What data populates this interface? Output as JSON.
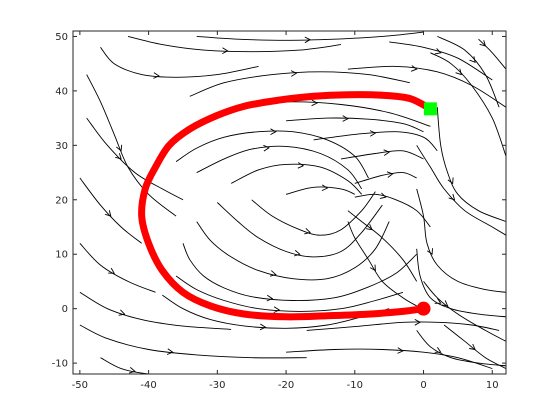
{
  "chart_data": {
    "type": "streamplot",
    "title": "",
    "xlabel": "",
    "ylabel": "",
    "xlim": [
      -51,
      12
    ],
    "ylim": [
      -12,
      51
    ],
    "xticks": [
      -50,
      -40,
      -30,
      -20,
      -10,
      0,
      10
    ],
    "yticks": [
      -10,
      0,
      10,
      20,
      30,
      40,
      50
    ],
    "grid": false,
    "legend": "none",
    "colors": {
      "streamlines": "#000000",
      "trajectory": "#ff0000",
      "start_marker": "#ff0000",
      "end_marker": "#00ff00"
    },
    "trajectory": {
      "x": [
        0,
        -3,
        -8,
        -14,
        -20,
        -26,
        -31,
        -35,
        -38,
        -40,
        -41,
        -40.5,
        -39,
        -37,
        -34,
        -30,
        -26,
        -21,
        -16,
        -11,
        -6,
        -2,
        1
      ],
      "y": [
        0,
        -0.5,
        -1,
        -1.3,
        -1.5,
        -1,
        0.5,
        3,
        7,
        12,
        17,
        22,
        26,
        30,
        33,
        35.5,
        37.2,
        38.3,
        39,
        39.3,
        39.2,
        38.6,
        36.7
      ]
    },
    "start_marker": {
      "shape": "circle",
      "x": 0,
      "y": 0
    },
    "end_marker": {
      "shape": "square",
      "x": 1,
      "y": 36.7
    },
    "streamlines": [
      {
        "x": [
          -47,
          -45,
          -41,
          -36,
          -30,
          -24
        ],
        "y": [
          48,
          45,
          43,
          42.5,
          43,
          44.5
        ]
      },
      {
        "x": [
          -43,
          -38,
          -32,
          -25,
          -18,
          -12
        ],
        "y": [
          50,
          48.5,
          47.5,
          47.2,
          47.5,
          48.5
        ]
      },
      {
        "x": [
          -33,
          -27,
          -20,
          -13,
          -6,
          0
        ],
        "y": [
          50,
          49.5,
          49.3,
          49.5,
          50,
          50.8
        ]
      },
      {
        "x": [
          -49,
          -47,
          -45,
          -43,
          -40,
          -36
        ],
        "y": [
          43,
          38,
          32,
          26,
          21,
          17
        ]
      },
      {
        "x": [
          -49,
          -46,
          -42,
          -38,
          -35
        ],
        "y": [
          35,
          30,
          25,
          22,
          20
        ]
      },
      {
        "x": [
          -50,
          -47,
          -44,
          -41
        ],
        "y": [
          24,
          19,
          15,
          12
        ]
      },
      {
        "x": [
          -50,
          -47,
          -43,
          -39
        ],
        "y": [
          12,
          8,
          5,
          3
        ]
      },
      {
        "x": [
          -50,
          -46,
          -41,
          -35,
          -28
        ],
        "y": [
          3,
          0,
          -2,
          -3.2,
          -3.8
        ]
      },
      {
        "x": [
          -50,
          -46,
          -40,
          -33,
          -25,
          -17
        ],
        "y": [
          -3,
          -5.5,
          -7.5,
          -8.5,
          -9,
          -9
        ]
      },
      {
        "x": [
          -47,
          -44,
          -40,
          -35,
          -29
        ],
        "y": [
          -9,
          -11,
          -12,
          -12.3,
          -12
        ]
      },
      {
        "x": [
          -20,
          -13,
          -6,
          0,
          5,
          10
        ],
        "y": [
          -8,
          -7.5,
          -7.5,
          -8,
          -9,
          -11
        ]
      },
      {
        "x": [
          -17,
          -10,
          -3,
          2,
          7,
          11
        ],
        "y": [
          -4,
          -3.3,
          -2.5,
          -2.5,
          -3,
          -4
        ]
      },
      {
        "x": [
          -38,
          -35,
          -31,
          -26,
          -20,
          -14,
          -9,
          -5
        ],
        "y": [
          2.5,
          0,
          -2,
          -3.2,
          -3.6,
          -3,
          -1.5,
          0
        ]
      },
      {
        "x": [
          -36,
          -33,
          -29,
          -24,
          -18,
          -12,
          -7,
          -3
        ],
        "y": [
          6,
          3.5,
          1.5,
          0,
          -0.5,
          0,
          1.5,
          3
        ]
      },
      {
        "x": [
          -35,
          -34,
          -32,
          -29,
          -25,
          -19,
          -13,
          -8,
          -4,
          -1
        ],
        "y": [
          12,
          9,
          6,
          3.8,
          2.2,
          1.5,
          2,
          4,
          6.5,
          10
        ]
      },
      {
        "x": [
          -33,
          -31,
          -28,
          -24,
          -19,
          -14,
          -10,
          -7,
          -5
        ],
        "y": [
          16,
          12.5,
          9.5,
          7,
          5.5,
          5.5,
          7.5,
          11,
          16
        ]
      },
      {
        "x": [
          -30,
          -27,
          -24,
          -20,
          -16,
          -12,
          -9,
          -6
        ],
        "y": [
          19.5,
          16,
          13,
          10.5,
          9.5,
          10.5,
          14,
          19
        ]
      },
      {
        "x": [
          -25,
          -22,
          -18,
          -15,
          -12,
          -9,
          -7
        ],
        "y": [
          20,
          17,
          14.5,
          13.5,
          14.5,
          18,
          21.5
        ]
      },
      {
        "x": [
          -36,
          -33,
          -29,
          -24,
          -19,
          -14,
          -10,
          -8
        ],
        "y": [
          27,
          29.5,
          31.5,
          32.5,
          32.5,
          31,
          28,
          24
        ]
      },
      {
        "x": [
          -33,
          -29,
          -25,
          -20,
          -15,
          -11,
          -9
        ],
        "y": [
          25,
          27.5,
          29.3,
          29.8,
          28.5,
          25.5,
          22
        ]
      },
      {
        "x": [
          -28,
          -24,
          -20,
          -15,
          -11,
          -9
        ],
        "y": [
          23,
          25.5,
          26.5,
          26,
          23.5,
          21
        ]
      },
      {
        "x": [
          -20,
          -16,
          -12,
          -10
        ],
        "y": [
          21,
          22.3,
          22,
          21
        ]
      },
      {
        "x": [
          -30,
          -25,
          -19,
          -12,
          -5,
          1
        ],
        "y": [
          36,
          37.5,
          38,
          37.5,
          36,
          33.5
        ]
      },
      {
        "x": [
          -34,
          -29,
          -22,
          -15,
          -8,
          -2
        ],
        "y": [
          39,
          41.5,
          43,
          43.5,
          43,
          41.5
        ]
      },
      {
        "x": [
          -20,
          -14,
          -8,
          -3,
          0
        ],
        "y": [
          34.5,
          35,
          34.8,
          34,
          32.5
        ]
      },
      {
        "x": [
          -16,
          -10,
          -4,
          0,
          2
        ],
        "y": [
          31,
          32,
          32.5,
          31.5,
          29
        ]
      },
      {
        "x": [
          -12,
          -7,
          -3,
          0
        ],
        "y": [
          27.5,
          28.5,
          29,
          27.5
        ]
      },
      {
        "x": [
          -10,
          -6,
          -3,
          -1
        ],
        "y": [
          23,
          24.5,
          25,
          24
        ]
      },
      {
        "x": [
          -10,
          -7,
          -4,
          -1,
          1
        ],
        "y": [
          20.5,
          21,
          20,
          18,
          15
        ]
      },
      {
        "x": [
          -11,
          -9,
          -6,
          -3,
          -1
        ],
        "y": [
          18,
          16,
          13,
          9,
          5
        ]
      },
      {
        "x": [
          -11,
          -10,
          -8,
          -6,
          -3,
          -1
        ],
        "y": [
          16,
          13,
          9,
          5,
          2,
          0.5
        ]
      },
      {
        "x": [
          2,
          2.5,
          3.5,
          5,
          8,
          12
        ],
        "y": [
          37,
          30,
          25,
          21,
          18,
          16
        ]
      },
      {
        "x": [
          -1,
          0,
          0.5,
          2,
          5,
          9,
          12
        ],
        "y": [
          22,
          17,
          12,
          8,
          5,
          3.5,
          3
        ]
      },
      {
        "x": [
          -1,
          -0.5,
          1,
          4,
          8,
          12
        ],
        "y": [
          11,
          6,
          2,
          0,
          -1,
          -1.5
        ]
      },
      {
        "x": [
          -11,
          -4,
          2,
          7,
          12
        ],
        "y": [
          44,
          44.5,
          43.5,
          41,
          37
        ]
      },
      {
        "x": [
          1,
          4,
          7,
          10,
          12
        ],
        "y": [
          47,
          45,
          41,
          35,
          28
        ]
      },
      {
        "x": [
          2,
          6,
          9,
          11
        ],
        "y": [
          50,
          47.5,
          43,
          37
        ]
      },
      {
        "x": [
          8,
          10,
          12
        ],
        "y": [
          49.5,
          47,
          44
        ]
      },
      {
        "x": [
          -5,
          0,
          5,
          10
        ],
        "y": [
          49,
          48,
          46,
          42
        ]
      },
      {
        "x": [
          -1,
          1,
          3,
          6,
          10,
          12
        ],
        "y": [
          30,
          26,
          22,
          18,
          15,
          13.5
        ]
      },
      {
        "x": [
          -1,
          1,
          4,
          8,
          12
        ],
        "y": [
          -4,
          -7,
          -9,
          -10,
          -10.5
        ]
      },
      {
        "x": [
          3,
          6,
          9,
          12
        ],
        "y": [
          -3,
          -6,
          -9,
          -11
        ]
      },
      {
        "x": [
          0,
          2,
          5,
          9,
          12
        ],
        "y": [
          5,
          2,
          -1,
          -4,
          -6
        ]
      }
    ]
  }
}
